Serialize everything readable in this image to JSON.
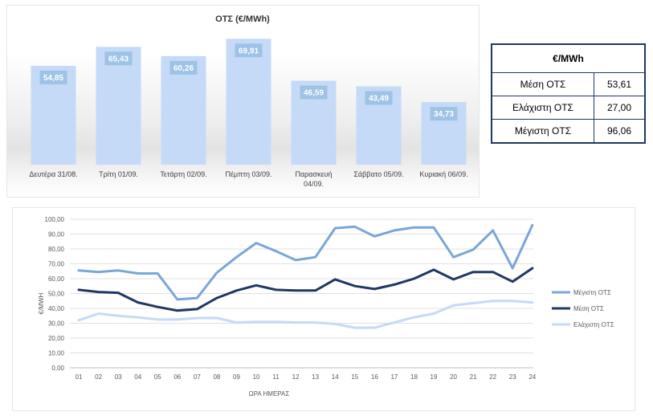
{
  "bar_chart": {
    "type": "bar",
    "title": "ΟΤΣ (€/MWh)",
    "categories": [
      "Δευτέρα 31/08.",
      "Τρίτη 01/09.",
      "Τετάρτη 02/09.",
      "Πέμπτη 03/09.",
      "Παρασκευή 04/09.",
      "Σάββατο 05/09.",
      "Κυριακή 06/09."
    ],
    "category_lines": [
      [
        "Δευτέρα 31/08."
      ],
      [
        "Τρίτη 01/09."
      ],
      [
        "Τετάρτη 02/09."
      ],
      [
        "Πέμπτη 03/09."
      ],
      [
        "Παρασκευή",
        "04/09."
      ],
      [
        "Σάββατο 05/09."
      ],
      [
        "Κυριακή 06/09."
      ]
    ],
    "values": [
      54.85,
      65.43,
      60.26,
      69.91,
      46.59,
      43.49,
      34.73
    ],
    "value_labels": [
      "54,85",
      "65,43",
      "60,26",
      "69,91",
      "46,59",
      "43,49",
      "34,73"
    ],
    "colors": {
      "bar": "#c5daf6",
      "label_bg": "#9dc3e6"
    },
    "ylim": [
      0,
      75
    ]
  },
  "stats_table": {
    "header": "€/MWh",
    "rows": [
      {
        "label": "Μέση ΟΤΣ",
        "value": "53,61"
      },
      {
        "label": "Ελάχιστη ΟΤΣ",
        "value": "27,00"
      },
      {
        "label": "Μέγιστη ΟΤΣ",
        "value": "96,06"
      }
    ]
  },
  "chart_data": {
    "type": "line",
    "xlabel": "ΩΡΑ ΗΜΕΡΑΣ",
    "ylabel": "€/MWH",
    "x": [
      "01",
      "02",
      "03",
      "04",
      "05",
      "06",
      "07",
      "08",
      "09",
      "10",
      "11",
      "12",
      "13",
      "14",
      "15",
      "16",
      "17",
      "18",
      "19",
      "20",
      "21",
      "22",
      "23",
      "24"
    ],
    "ylim": [
      0,
      100
    ],
    "ytick_labels": [
      "0,00",
      "10,00",
      "20,00",
      "30,00",
      "40,00",
      "50,00",
      "60,00",
      "70,00",
      "80,00",
      "90,00",
      "100,00"
    ],
    "legend_position": "right",
    "series": [
      {
        "name": "Μέγιστη ΟΤΣ",
        "color": "#7aa6d8",
        "values": [
          65.5,
          64.5,
          65.5,
          63.5,
          63.5,
          46,
          47,
          64,
          74.5,
          84,
          78.5,
          72.5,
          74.5,
          94,
          95,
          88.5,
          92.5,
          94.5,
          94.5,
          74.5,
          79.5,
          92.5,
          67,
          96
        ]
      },
      {
        "name": "Μέση ΟΤΣ",
        "color": "#1f3864",
        "values": [
          52.5,
          51,
          50.5,
          44,
          41,
          38.5,
          39.5,
          47,
          52,
          55.5,
          52.5,
          52,
          52,
          59.5,
          55,
          53,
          56,
          60,
          66,
          59.5,
          64.5,
          64.5,
          58,
          67
        ]
      },
      {
        "name": "Ελάχιστη ΟΤΣ",
        "color": "#c5daf6",
        "values": [
          32,
          36.5,
          35,
          34,
          32.5,
          32.5,
          33.5,
          33.5,
          30.5,
          31,
          31,
          30.5,
          30.5,
          29.5,
          27,
          27,
          30.5,
          34,
          36.5,
          42,
          43.5,
          45,
          45,
          44
        ]
      }
    ]
  }
}
